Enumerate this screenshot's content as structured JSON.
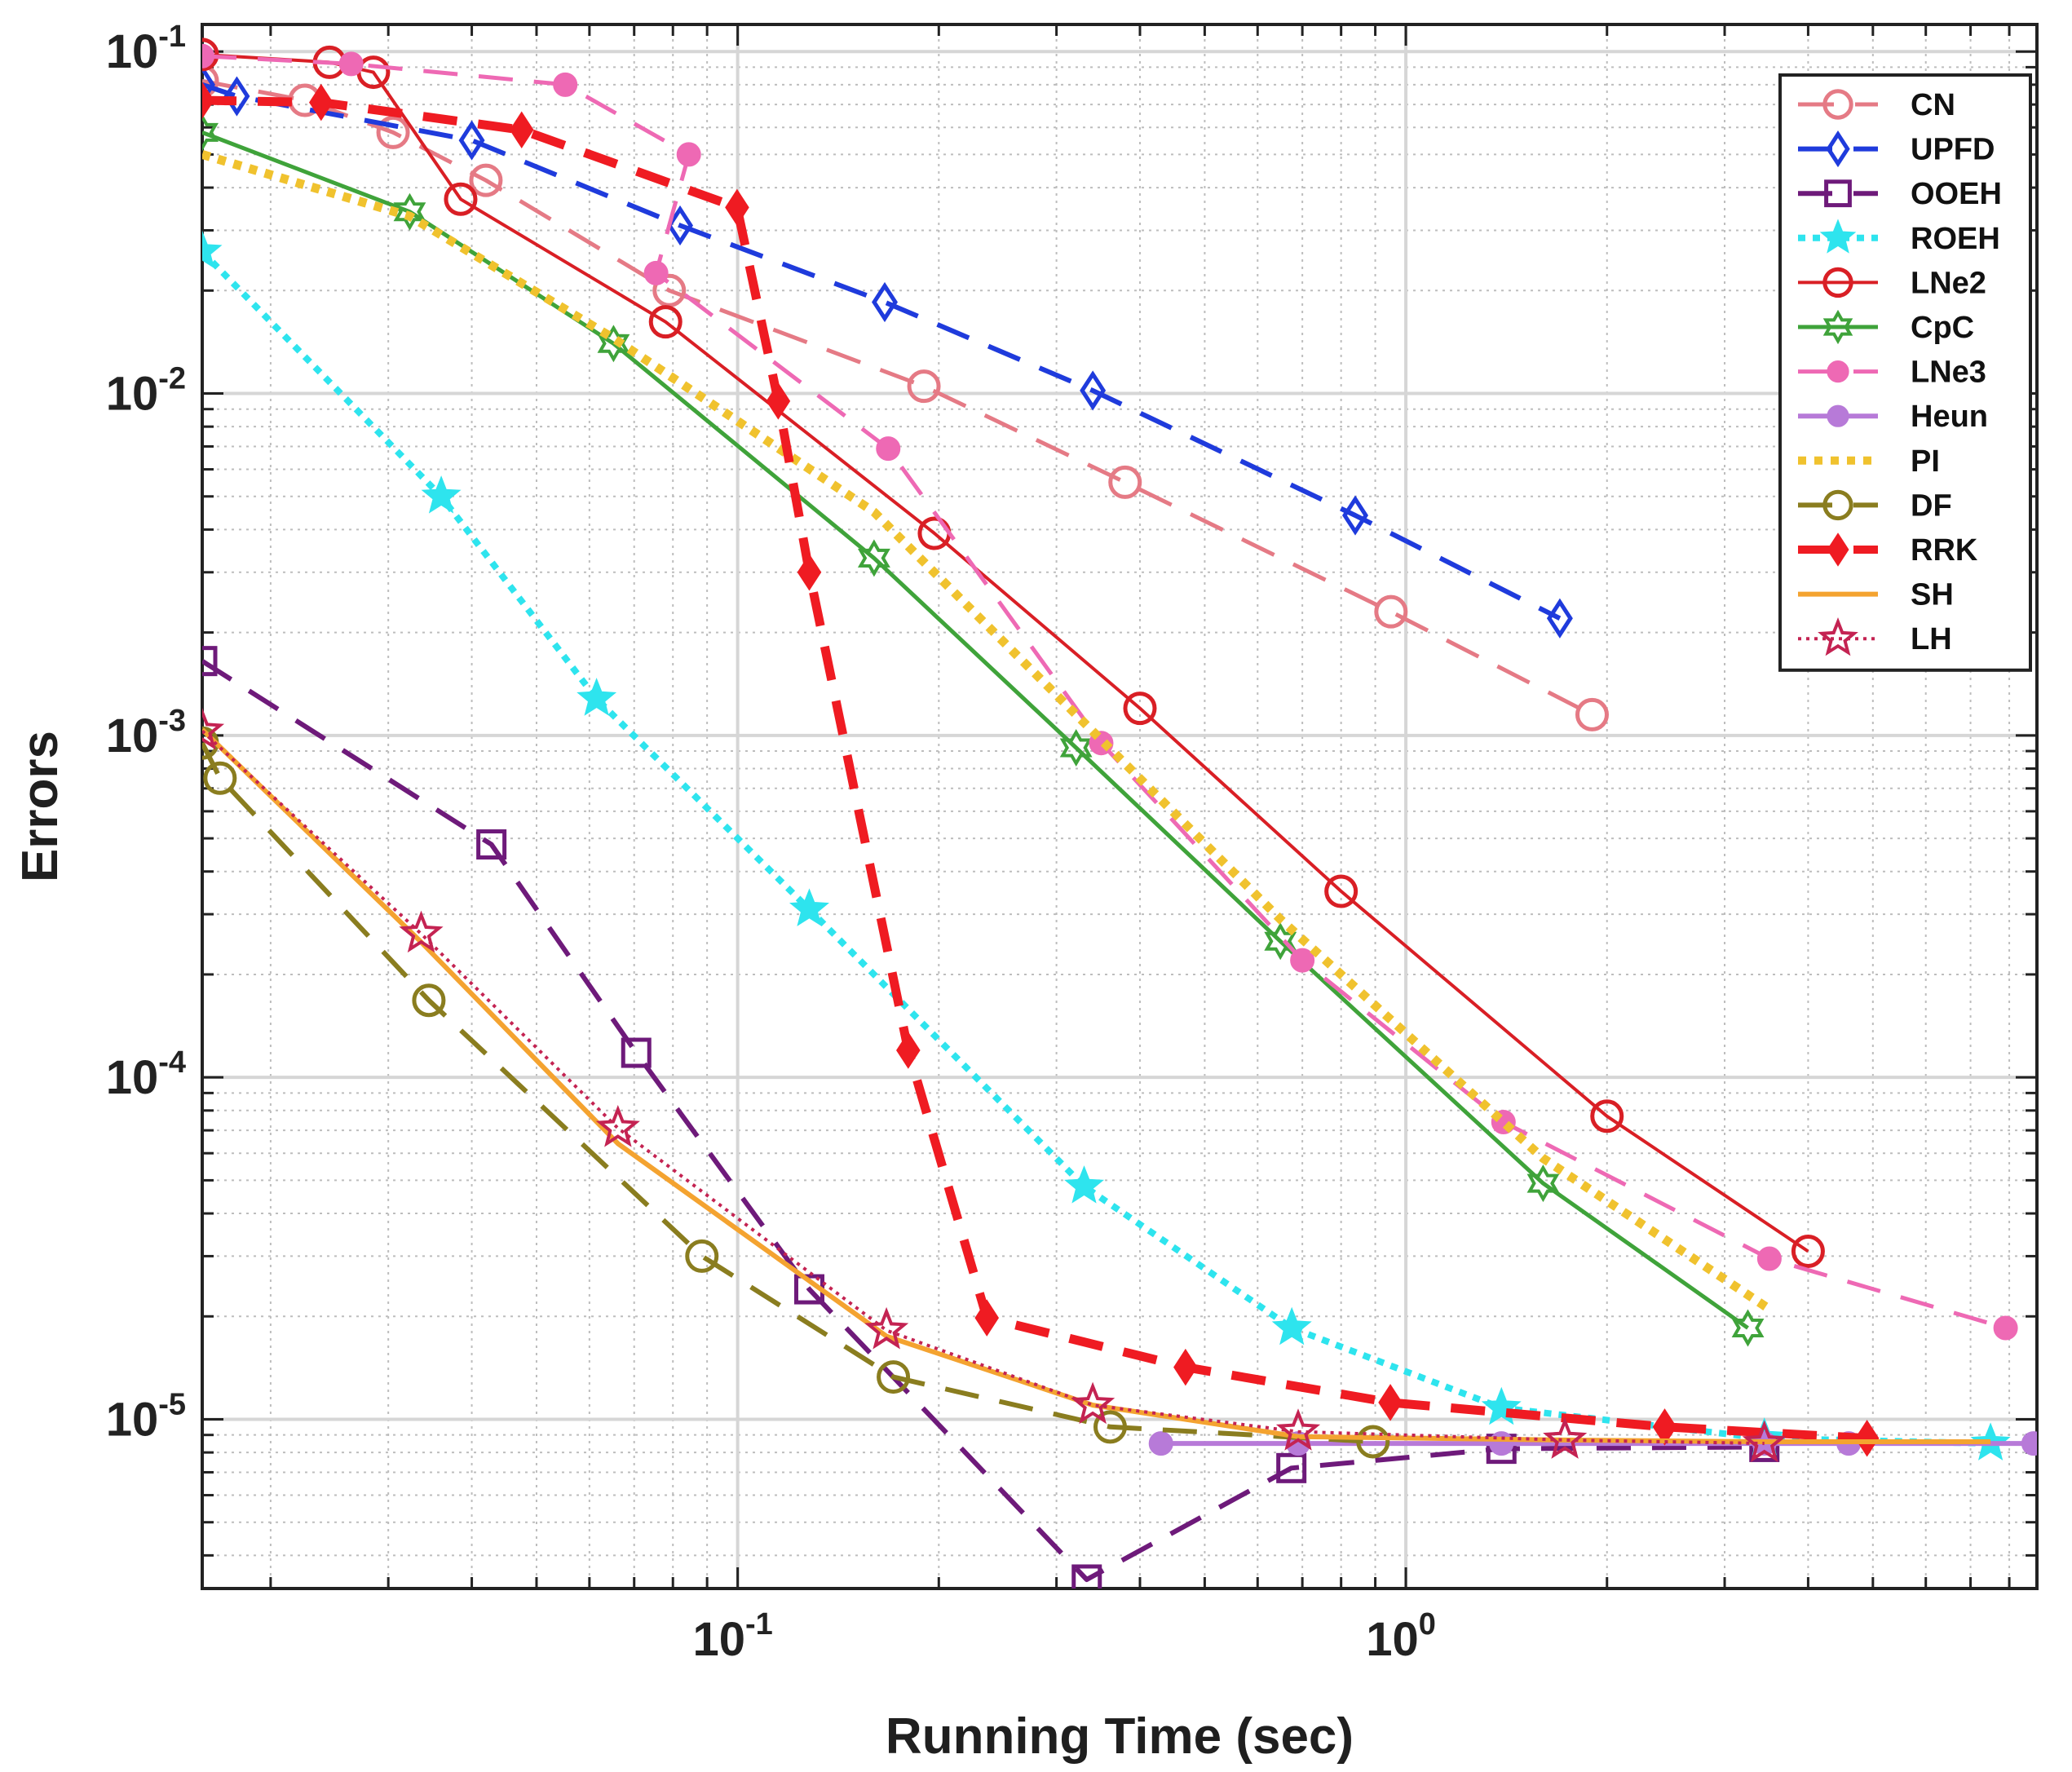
{
  "chart_data": {
    "type": "line",
    "title": "",
    "xlabel": "Running Time (sec)",
    "ylabel": "Errors",
    "xscale": "log",
    "yscale": "log",
    "xlim": [
      0.0158,
      8.8
    ],
    "ylim": [
      3.2e-06,
      0.12
    ],
    "grid": true,
    "legend_position": "top-right",
    "x_ticks": [
      {
        "value": 0.1,
        "base": "10",
        "exp": "-1"
      },
      {
        "value": 1,
        "base": "10",
        "exp": "0"
      }
    ],
    "y_ticks": [
      {
        "value": 0.1,
        "base": "10",
        "exp": "-1"
      },
      {
        "value": 0.01,
        "base": "10",
        "exp": "-2"
      },
      {
        "value": 0.001,
        "base": "10",
        "exp": "-3"
      },
      {
        "value": 0.0001,
        "base": "10",
        "exp": "-4"
      },
      {
        "value": 1e-05,
        "base": "10",
        "exp": "-5"
      }
    ],
    "series": [
      {
        "name": "CN",
        "color": "#e57a85",
        "dash": "44,26",
        "width": 5,
        "marker": "circle",
        "fill": "none",
        "x": [
          0.0158,
          0.0225,
          0.0305,
          0.042,
          0.079,
          0.19,
          0.38,
          0.95,
          1.9
        ],
        "y": [
          0.082,
          0.072,
          0.058,
          0.042,
          0.02,
          0.0105,
          0.0055,
          0.0023,
          0.00115
        ]
      },
      {
        "name": "UPFD",
        "color": "#1f3bdc",
        "dash": "42,26",
        "width": 6,
        "marker": "diamond",
        "fill": "none",
        "x": [
          0.0158,
          0.0178,
          0.04,
          0.082,
          0.166,
          0.34,
          0.84,
          1.7
        ],
        "y": [
          0.08,
          0.074,
          0.055,
          0.031,
          0.0185,
          0.0102,
          0.0044,
          0.0022
        ]
      },
      {
        "name": "OOEH",
        "color": "#6e1a7a",
        "dash": "42,26",
        "width": 6,
        "marker": "square",
        "fill": "none",
        "x": [
          0.0158,
          0.0428,
          0.0705,
          0.128,
          0.333,
          0.674,
          1.39,
          3.44
        ],
        "y": [
          0.00165,
          0.00048,
          0.000118,
          2.4e-05,
          3.4e-06,
          7.2e-06,
          8.2e-06,
          8.3e-06
        ]
      },
      {
        "name": "ROEH",
        "color": "#2ee4ee",
        "dash": "9,9",
        "width": 8,
        "marker": "star",
        "fill": "#2ee4ee",
        "x": [
          0.0158,
          0.036,
          0.0615,
          0.128,
          0.33,
          0.675,
          1.39,
          3.44,
          7.5
        ],
        "y": [
          0.026,
          0.005,
          0.00128,
          0.00031,
          4.8e-05,
          1.85e-05,
          1.08e-05,
          8.8e-06,
          8.5e-06
        ]
      },
      {
        "name": "LNe2",
        "color": "#d91f25",
        "dash": "",
        "width": 4,
        "marker": "circle",
        "fill": "none",
        "x": [
          0.0158,
          0.0245,
          0.0285,
          0.0385,
          0.078,
          0.197,
          0.4,
          0.8,
          2.0,
          4.0
        ],
        "y": [
          0.098,
          0.093,
          0.087,
          0.037,
          0.0162,
          0.0039,
          0.0012,
          0.00035,
          7.7e-05,
          3.1e-05
        ]
      },
      {
        "name": "CpC",
        "color": "#3fa33a",
        "dash": "",
        "width": 5,
        "marker": "hexstar",
        "fill": "none",
        "x": [
          0.0158,
          0.0323,
          0.0652,
          0.16,
          0.321,
          0.649,
          1.605,
          3.25
        ],
        "y": [
          0.058,
          0.034,
          0.014,
          0.0033,
          0.00092,
          0.00025,
          4.9e-05,
          1.85e-05
        ]
      },
      {
        "name": "LNe3",
        "color": "#ee69b4",
        "dash": "42,26",
        "width": 5,
        "marker": "dot",
        "fill": "#ee69b4",
        "x": [
          0.0158,
          0.0264,
          0.0552,
          0.0845,
          0.0755,
          0.168,
          0.35,
          0.7,
          1.4,
          3.5,
          7.9
        ],
        "y": [
          0.097,
          0.092,
          0.08,
          0.05,
          0.0225,
          0.0069,
          0.00095,
          0.00022,
          7.4e-05,
          2.95e-05,
          1.85e-05
        ]
      },
      {
        "name": "Heun",
        "color": "#b77ad8",
        "dash": "",
        "width": 6,
        "marker": "dot",
        "fill": "#b77ad8",
        "x": [
          0.43,
          0.69,
          1.39,
          3.44,
          4.6,
          8.7
        ],
        "y": [
          8.5e-06,
          8.5e-06,
          8.5e-06,
          8.5e-06,
          8.5e-06,
          8.5e-06
        ]
      },
      {
        "name": "PI",
        "color": "#f0c22e",
        "dash": "10,10",
        "width": 11,
        "marker": "none",
        "fill": "none",
        "x": [
          0.0158,
          0.0323,
          0.0652,
          0.16,
          0.321,
          0.649,
          1.605,
          3.5
        ],
        "y": [
          0.05,
          0.033,
          0.0145,
          0.0045,
          0.00115,
          0.00029,
          5.8e-05,
          2.1e-05
        ]
      },
      {
        "name": "DF",
        "color": "#8a7d1f",
        "dash": "42,26",
        "width": 6,
        "marker": "circle",
        "fill": "none",
        "x": [
          0.0158,
          0.0168,
          0.0345,
          0.0884,
          0.171,
          0.361,
          0.893
        ],
        "y": [
          0.00095,
          0.00075,
          0.000168,
          3e-05,
          1.33e-05,
          9.5e-06,
          8.6e-06
        ]
      },
      {
        "name": "RRK",
        "color": "#ef1b22",
        "dash": "42,26",
        "width": 11,
        "marker": "filled-diamond",
        "fill": "#ef1b22",
        "x": [
          0.0158,
          0.0238,
          0.0475,
          0.0998,
          0.115,
          0.128,
          0.18,
          0.236,
          0.468,
          0.948,
          2.44,
          4.9
        ],
        "y": [
          0.072,
          0.071,
          0.059,
          0.035,
          0.0095,
          0.003,
          0.00012,
          1.98e-05,
          1.42e-05,
          1.12e-05,
          9.5e-06,
          8.8e-06
        ]
      },
      {
        "name": "SH",
        "color": "#f4a330",
        "dash": "",
        "width": 6,
        "marker": "none",
        "fill": "none",
        "x": [
          0.0158,
          0.0335,
          0.0662,
          0.167,
          0.34,
          0.69,
          1.73,
          3.44,
          7.5
        ],
        "y": [
          0.00104,
          0.00025,
          6.4e-05,
          1.75e-05,
          1.1e-05,
          8.9e-06,
          8.7e-06,
          8.6e-06,
          8.6e-06
        ]
      },
      {
        "name": "LH",
        "color": "#c42352",
        "dash": "4,6",
        "width": 4,
        "marker": "star",
        "fill": "none",
        "x": [
          0.0158,
          0.0336,
          0.0662,
          0.167,
          0.34,
          0.69,
          1.73,
          3.44
        ],
        "y": [
          0.00103,
          0.000263,
          7.1e-05,
          1.82e-05,
          1.1e-05,
          9.2e-06,
          8.7e-06,
          8.5e-06
        ]
      }
    ]
  }
}
